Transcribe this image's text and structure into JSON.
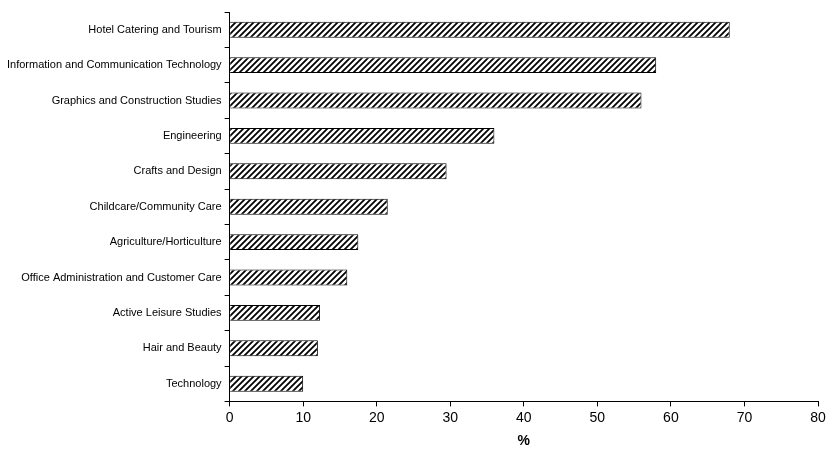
{
  "chart_data": {
    "type": "bar",
    "orientation": "horizontal",
    "categories": [
      "Hotel Catering and Tourism",
      "Information and Communication Technology",
      "Graphics and Construction Studies",
      "Engineering",
      "Crafts and Design",
      "Childcare/Community Care",
      "Agriculture/Horticulture",
      "Office Administration and Customer Care",
      "Active Leisure Studies",
      "Hair and Beauty",
      "Technology"
    ],
    "values": [
      68,
      58,
      56,
      36,
      29.5,
      21.5,
      17.5,
      16,
      12.3,
      12,
      10
    ],
    "color": "#000000",
    "x_label": "%",
    "xlim": [
      0,
      80
    ],
    "xticks": [
      0,
      10,
      20,
      30,
      40,
      50,
      60,
      70,
      80
    ],
    "grid": false
  }
}
